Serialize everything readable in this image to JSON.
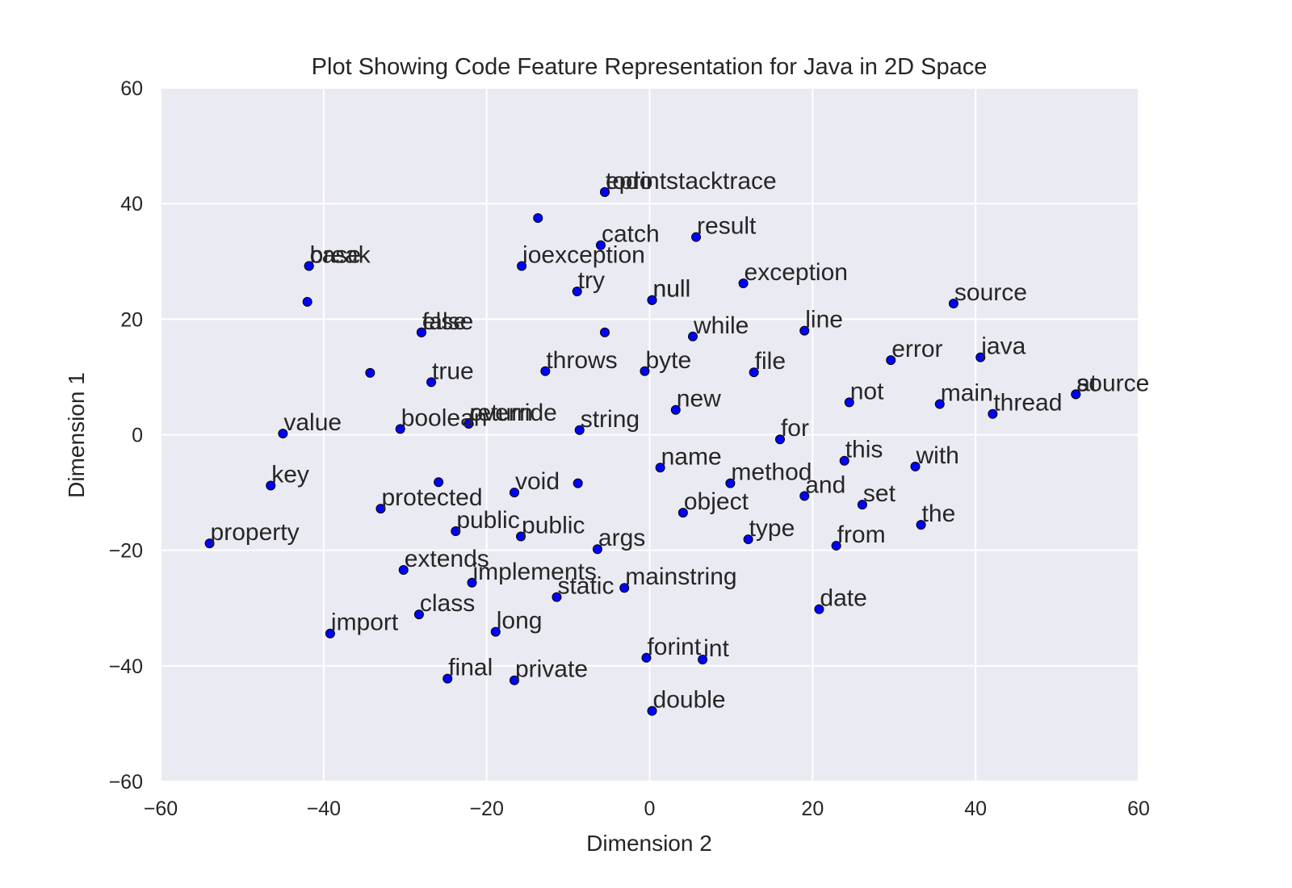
{
  "chart_data": {
    "type": "scatter",
    "title": "Plot Showing Code Feature Representation for Java in 2D Space",
    "xlabel": "Dimension 2",
    "ylabel": "Dimension 1",
    "xlim": [
      -60,
      60
    ],
    "ylim": [
      -60,
      60
    ],
    "xticks": [
      "−60",
      "−40",
      "−20",
      "0",
      "20",
      "40",
      "60"
    ],
    "yticks": [
      "60",
      "40",
      "20",
      "0",
      "−20",
      "−40",
      "−60"
    ],
    "grid": true,
    "background_color": "#eaeaf2",
    "point_color": "#0000ff",
    "points": [
      {
        "x": -5.5,
        "y": 42.0,
        "label": "eprintstacktrace"
      },
      {
        "x": -5.5,
        "y": 42.0,
        "label": "todo"
      },
      {
        "x": -13.7,
        "y": 37.5,
        "label": ""
      },
      {
        "x": -6.0,
        "y": 32.8,
        "label": "catch"
      },
      {
        "x": 5.7,
        "y": 34.2,
        "label": "result"
      },
      {
        "x": -41.8,
        "y": 29.2,
        "label": "case"
      },
      {
        "x": -41.8,
        "y": 29.2,
        "label": "break"
      },
      {
        "x": -15.7,
        "y": 29.2,
        "label": "ioexception"
      },
      {
        "x": -8.9,
        "y": 24.8,
        "label": "try"
      },
      {
        "x": 0.3,
        "y": 23.3,
        "label": "null"
      },
      {
        "x": 0.3,
        "y": 23.3,
        "label": "null"
      },
      {
        "x": 11.5,
        "y": 26.2,
        "label": "exception"
      },
      {
        "x": 37.3,
        "y": 22.7,
        "label": "source"
      },
      {
        "x": -42.0,
        "y": 23.0,
        "label": ""
      },
      {
        "x": -28.0,
        "y": 17.7,
        "label": "else"
      },
      {
        "x": -28.0,
        "y": 17.7,
        "label": "false"
      },
      {
        "x": -5.5,
        "y": 17.7,
        "label": ""
      },
      {
        "x": 5.3,
        "y": 17.0,
        "label": "while"
      },
      {
        "x": 19.0,
        "y": 18.0,
        "label": "line"
      },
      {
        "x": -26.8,
        "y": 9.1,
        "label": "true"
      },
      {
        "x": -34.3,
        "y": 10.7,
        "label": ""
      },
      {
        "x": -12.8,
        "y": 11.0,
        "label": "throws"
      },
      {
        "x": -0.6,
        "y": 11.0,
        "label": "byte"
      },
      {
        "x": 12.8,
        "y": 10.8,
        "label": "file"
      },
      {
        "x": 29.6,
        "y": 12.9,
        "label": "error"
      },
      {
        "x": 40.6,
        "y": 13.4,
        "label": "java"
      },
      {
        "x": 52.3,
        "y": 7.0,
        "label": "source"
      },
      {
        "x": 52.3,
        "y": 7.0,
        "label": "at"
      },
      {
        "x": 24.5,
        "y": 5.6,
        "label": "not"
      },
      {
        "x": 35.6,
        "y": 5.3,
        "label": "main"
      },
      {
        "x": 42.1,
        "y": 3.6,
        "label": "thread"
      },
      {
        "x": 3.2,
        "y": 4.3,
        "label": "new"
      },
      {
        "x": -45.0,
        "y": 0.2,
        "label": "value"
      },
      {
        "x": -30.6,
        "y": 1.0,
        "label": "boolean"
      },
      {
        "x": -22.2,
        "y": 1.9,
        "label": "return"
      },
      {
        "x": -22.2,
        "y": 1.9,
        "label": "override"
      },
      {
        "x": -8.6,
        "y": 0.8,
        "label": "string"
      },
      {
        "x": 16.0,
        "y": -0.8,
        "label": "for"
      },
      {
        "x": 1.3,
        "y": -5.7,
        "label": "name"
      },
      {
        "x": 23.9,
        "y": -4.5,
        "label": "this"
      },
      {
        "x": 32.6,
        "y": -5.5,
        "label": "with"
      },
      {
        "x": -46.5,
        "y": -8.8,
        "label": "key"
      },
      {
        "x": -25.9,
        "y": -8.2,
        "label": ""
      },
      {
        "x": -16.6,
        "y": -10.0,
        "label": "void"
      },
      {
        "x": -8.8,
        "y": -8.4,
        "label": ""
      },
      {
        "x": 9.9,
        "y": -8.4,
        "label": "method"
      },
      {
        "x": 19.0,
        "y": -10.6,
        "label": "and"
      },
      {
        "x": 26.1,
        "y": -12.1,
        "label": "set"
      },
      {
        "x": -33.0,
        "y": -12.8,
        "label": "protected"
      },
      {
        "x": 4.1,
        "y": -13.5,
        "label": "object"
      },
      {
        "x": 33.3,
        "y": -15.6,
        "label": "the"
      },
      {
        "x": -23.8,
        "y": -16.7,
        "label": "public"
      },
      {
        "x": -15.8,
        "y": -17.6,
        "label": "public"
      },
      {
        "x": 12.1,
        "y": -18.1,
        "label": "type"
      },
      {
        "x": 22.9,
        "y": -19.2,
        "label": "from"
      },
      {
        "x": -54.0,
        "y": -18.8,
        "label": "property"
      },
      {
        "x": -6.4,
        "y": -19.8,
        "label": "args"
      },
      {
        "x": -30.2,
        "y": -23.4,
        "label": "extends"
      },
      {
        "x": -21.8,
        "y": -25.6,
        "label": "implements"
      },
      {
        "x": -3.1,
        "y": -26.5,
        "label": "mainstring"
      },
      {
        "x": -11.4,
        "y": -28.1,
        "label": "static"
      },
      {
        "x": -28.3,
        "y": -31.1,
        "label": "class"
      },
      {
        "x": 20.8,
        "y": -30.2,
        "label": "date"
      },
      {
        "x": -39.2,
        "y": -34.4,
        "label": "import"
      },
      {
        "x": -18.9,
        "y": -34.1,
        "label": "long"
      },
      {
        "x": -0.4,
        "y": -38.6,
        "label": "forint"
      },
      {
        "x": 6.5,
        "y": -38.9,
        "label": "int"
      },
      {
        "x": -24.8,
        "y": -42.2,
        "label": "final"
      },
      {
        "x": -16.6,
        "y": -42.5,
        "label": "private"
      },
      {
        "x": 0.3,
        "y": -47.8,
        "label": "double"
      }
    ]
  }
}
